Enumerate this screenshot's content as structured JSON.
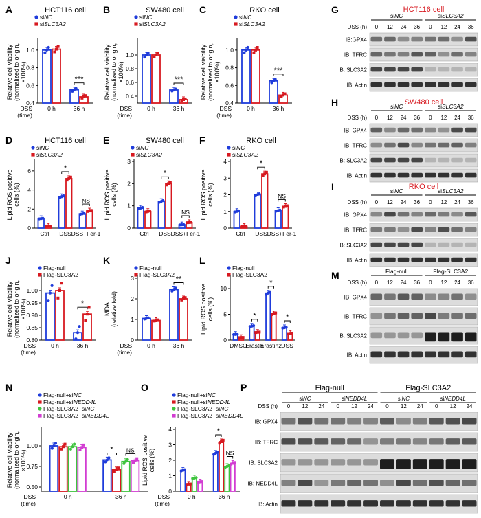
{
  "colors": {
    "blue": "#1f3cdb",
    "red": "#d71920",
    "green": "#3ec43e",
    "magenta": "#d23dd2"
  },
  "chart_data": [
    {
      "panel": "A",
      "type": "bar",
      "title": "HCT116 cell",
      "ylabel": "Relative cell viability (normalized to origin, ×100%)",
      "xlabel_side": "DSS (time)",
      "categories": [
        "0 h",
        "36 h"
      ],
      "ylim": [
        0.4,
        1.1
      ],
      "yticks": [
        0.4,
        0.6,
        0.8,
        1.0
      ],
      "series": [
        {
          "name": "siNC",
          "values": [
            1.0,
            0.55
          ]
        },
        {
          "name": "siSLC3A2",
          "values": [
            1.01,
            0.47
          ]
        }
      ],
      "annotations": [
        {
          "group": 1,
          "text": "***"
        }
      ]
    },
    {
      "panel": "B",
      "type": "bar",
      "title": "SW480 cell",
      "ylabel": "Relative cell viability (normalized to origin, ×100%)",
      "xlabel_side": "DSS (time)",
      "categories": [
        "0 h",
        "36 h"
      ],
      "ylim": [
        0.3,
        1.2
      ],
      "yticks": [
        0.4,
        0.6,
        0.8,
        1.0
      ],
      "series": [
        {
          "name": "siNC",
          "values": [
            1.0,
            0.49
          ]
        },
        {
          "name": "siSLC3A2",
          "values": [
            1.0,
            0.35
          ]
        }
      ],
      "annotations": [
        {
          "group": 1,
          "text": "***"
        }
      ]
    },
    {
      "panel": "C",
      "type": "bar",
      "title": "RKO cell",
      "ylabel": "Relative cell viability (normalized to origin, ×100%)",
      "xlabel_side": "DSS (time)",
      "categories": [
        "0 h",
        "36 h"
      ],
      "ylim": [
        0.4,
        1.1
      ],
      "yticks": [
        0.4,
        0.6,
        0.8,
        1.0
      ],
      "series": [
        {
          "name": "siNC",
          "values": [
            1.0,
            0.65
          ]
        },
        {
          "name": "siSLC3A2",
          "values": [
            1.0,
            0.49
          ]
        }
      ],
      "annotations": [
        {
          "group": 1,
          "text": "***"
        }
      ]
    },
    {
      "panel": "D",
      "type": "bar",
      "title": "HCT116 cell",
      "ylabel": "Lipid ROS positive cells (%)",
      "categories": [
        "Ctrl",
        "DSS",
        "DSS+Fer-1"
      ],
      "ylim": [
        0,
        7
      ],
      "yticks": [
        0,
        2,
        4,
        6
      ],
      "series": [
        {
          "name": "siNC",
          "values": [
            1.0,
            3.3,
            1.5
          ]
        },
        {
          "name": "siSLC3A2",
          "values": [
            0.2,
            5.2,
            1.8
          ]
        }
      ],
      "annotations": [
        {
          "group": 1,
          "text": "*"
        },
        {
          "group": 2,
          "text": "NS"
        }
      ]
    },
    {
      "panel": "E",
      "type": "bar",
      "title": "SW480 cell",
      "ylabel": "Lipid ROS positive cells (%)",
      "categories": [
        "Ctrl",
        "DSS",
        "DSS+Fer-1"
      ],
      "ylim": [
        0,
        3
      ],
      "yticks": [
        0,
        1,
        2,
        3
      ],
      "series": [
        {
          "name": "siNC",
          "values": [
            0.9,
            1.2,
            0.15
          ]
        },
        {
          "name": "siSLC3A2",
          "values": [
            0.75,
            2.0,
            0.25
          ]
        }
      ],
      "annotations": [
        {
          "group": 1,
          "text": "*"
        },
        {
          "group": 2,
          "text": "NS"
        }
      ]
    },
    {
      "panel": "F",
      "type": "bar",
      "title": "RKO cell",
      "ylabel": "Lipid ROS positive cells (%)",
      "categories": [
        "Ctrl",
        "DSS",
        "DSS+Fer-1"
      ],
      "ylim": [
        0,
        4
      ],
      "yticks": [
        0,
        1,
        2,
        3,
        4
      ],
      "series": [
        {
          "name": "siNC",
          "values": [
            1.0,
            2.0,
            1.05
          ]
        },
        {
          "name": "siSLC3A2",
          "values": [
            0.1,
            3.25,
            1.3
          ]
        }
      ],
      "annotations": [
        {
          "group": 1,
          "text": "*"
        },
        {
          "group": 2,
          "text": "NS"
        }
      ]
    },
    {
      "panel": "J",
      "type": "bar",
      "title": "",
      "ylabel": "Relative cell viability (normalized to origin, ×100%)",
      "xlabel_side": "DSS (time)",
      "categories": [
        "0 h",
        "36 h"
      ],
      "ylim": [
        0.8,
        1.05
      ],
      "yticks": [
        0.8,
        0.85,
        0.9,
        0.95,
        1.0
      ],
      "series": [
        {
          "name": "Flag-null",
          "values": [
            0.99,
            0.83
          ]
        },
        {
          "name": "Flag-SLC3A2",
          "values": [
            1.0,
            0.905
          ]
        }
      ],
      "annotations": [
        {
          "group": 1,
          "text": "*"
        }
      ]
    },
    {
      "panel": "K",
      "type": "bar",
      "title": "",
      "ylabel": "MDA (relative fold)",
      "xlabel_side": "DSS (time)",
      "categories": [
        "0 h",
        "36 h"
      ],
      "ylim": [
        0,
        3
      ],
      "yticks": [
        0,
        1,
        2,
        3
      ],
      "series": [
        {
          "name": "Flag-null",
          "values": [
            1.05,
            2.45
          ]
        },
        {
          "name": "Flag-SLC3A2",
          "values": [
            0.95,
            2.0
          ]
        }
      ],
      "annotations": [
        {
          "group": 1,
          "text": "**"
        }
      ]
    },
    {
      "panel": "L",
      "type": "bar",
      "title": "",
      "ylabel": "Lipid ROS positive cells (%)",
      "categories": [
        "DMSO",
        "Erastin",
        "Erastin2",
        "DSS"
      ],
      "ylim": [
        0,
        12
      ],
      "yticks": [
        0,
        5,
        10
      ],
      "series": [
        {
          "name": "Flag-null",
          "values": [
            1.1,
            2.7,
            9.1,
            2.4
          ]
        },
        {
          "name": "Flag-SLC3A2",
          "values": [
            0.5,
            1.5,
            5.1,
            1.3
          ]
        }
      ],
      "annotations": [
        {
          "group": 1,
          "text": "*"
        },
        {
          "group": 2,
          "text": "*"
        },
        {
          "group": 3,
          "text": "*"
        }
      ]
    },
    {
      "panel": "N",
      "type": "bar",
      "title": "",
      "ylabel": "Relative cell viability (normalized to origin, ×100%)",
      "xlabel_side": "DSS (time)",
      "categories": [
        "0 h",
        "36 h"
      ],
      "ylim": [
        0.45,
        1.2
      ],
      "yticks": [
        0.5,
        0.75,
        1.0
      ],
      "series": [
        {
          "name": "Flag-null+siNC",
          "values": [
            1.0,
            0.83
          ]
        },
        {
          "name": "Flag-null+siNEDD4L",
          "values": [
            0.99,
            0.71
          ]
        },
        {
          "name": "Flag-SLC3A2+siNC",
          "values": [
            0.99,
            0.81
          ]
        },
        {
          "name": "Flag-SLC3A2+siNEDD4L",
          "values": [
            0.98,
            0.82
          ]
        }
      ],
      "annotations": [
        {
          "group": 1,
          "pair": [
            0,
            1
          ],
          "text": "*"
        },
        {
          "group": 1,
          "pair": [
            2,
            3
          ],
          "text": "NS"
        }
      ]
    },
    {
      "panel": "O",
      "type": "bar",
      "title": "",
      "ylabel": "Lipid ROS positive cells (%)",
      "xlabel_side": "DSS (time)",
      "categories": [
        "0 h",
        "36 h"
      ],
      "ylim": [
        0,
        4
      ],
      "yticks": [
        0,
        1,
        2,
        3,
        4
      ],
      "series": [
        {
          "name": "Flag-null+siNC",
          "values": [
            1.35,
            2.45
          ]
        },
        {
          "name": "Flag-null+siNEDD4L",
          "values": [
            0.45,
            3.2
          ]
        },
        {
          "name": "Flag-SLC3A2+siNC",
          "values": [
            0.85,
            1.6
          ]
        },
        {
          "name": "Flag-SLC3A2+siNEDD4L",
          "values": [
            0.6,
            1.8
          ]
        }
      ],
      "annotations": [
        {
          "group": 1,
          "pair": [
            0,
            1
          ],
          "text": "*"
        },
        {
          "group": 1,
          "pair": [
            2,
            3
          ],
          "text": "NS"
        }
      ]
    }
  ],
  "blots": [
    {
      "panel": "G",
      "title": "HCT116 cell",
      "group_labels": [
        "siNC",
        "siSLC3A2"
      ],
      "dss_label": "DSS (h)",
      "timepoints": [
        "0",
        "12",
        "24",
        "36",
        "0",
        "12",
        "24",
        "36"
      ],
      "rows": [
        "IB:GPX4",
        "IB: TFRC",
        "IB: SLC3A2",
        "IB: Actin"
      ]
    },
    {
      "panel": "H",
      "title": "SW480 cell",
      "group_labels": [
        "siNC",
        "siSLC3A2"
      ],
      "dss_label": "DSS (h)",
      "timepoints": [
        "0",
        "12",
        "24",
        "36",
        "0",
        "12",
        "24",
        "36"
      ],
      "rows": [
        "IB: GPX4",
        "IB: TFRC",
        "IB: SLC3A2",
        "IB: Actin"
      ]
    },
    {
      "panel": "I",
      "title": "RKO cell",
      "group_labels": [
        "siNC",
        "siSLC3A2"
      ],
      "dss_label": "DSS (h)",
      "timepoints": [
        "0",
        "12",
        "24",
        "36",
        "0",
        "12",
        "24",
        "36"
      ],
      "rows": [
        "IB: GPX4",
        "IB: TFRC",
        "IB: SLC3A2",
        "IB: Actin"
      ]
    },
    {
      "panel": "M",
      "title": "",
      "group_labels": [
        "Flag-null",
        "Flag-SLC3A2"
      ],
      "dss_label": "DSS (h)",
      "timepoints": [
        "0",
        "12",
        "24",
        "36",
        "0",
        "12",
        "24",
        "36"
      ],
      "rows": [
        "IB: GPX4",
        "IB: TFRC",
        "IB: SLC3A2",
        "IB: Actin"
      ]
    },
    {
      "panel": "P",
      "title": "",
      "group_labels": [
        "Flag-null",
        "Flag-SLC3A2"
      ],
      "sub_labels": [
        "siNC",
        "siNEDD4L",
        "siNC",
        "siNEDD4L"
      ],
      "dss_label": "DSS (h)",
      "timepoints": [
        "0",
        "12",
        "24",
        "0",
        "12",
        "24",
        "0",
        "12",
        "24",
        "0",
        "12",
        "24"
      ],
      "rows": [
        "IB: GPX4",
        "IB: TFRC",
        "IB: SLC3A2",
        "IB: NEDD4L",
        "IB: Actin"
      ]
    }
  ]
}
